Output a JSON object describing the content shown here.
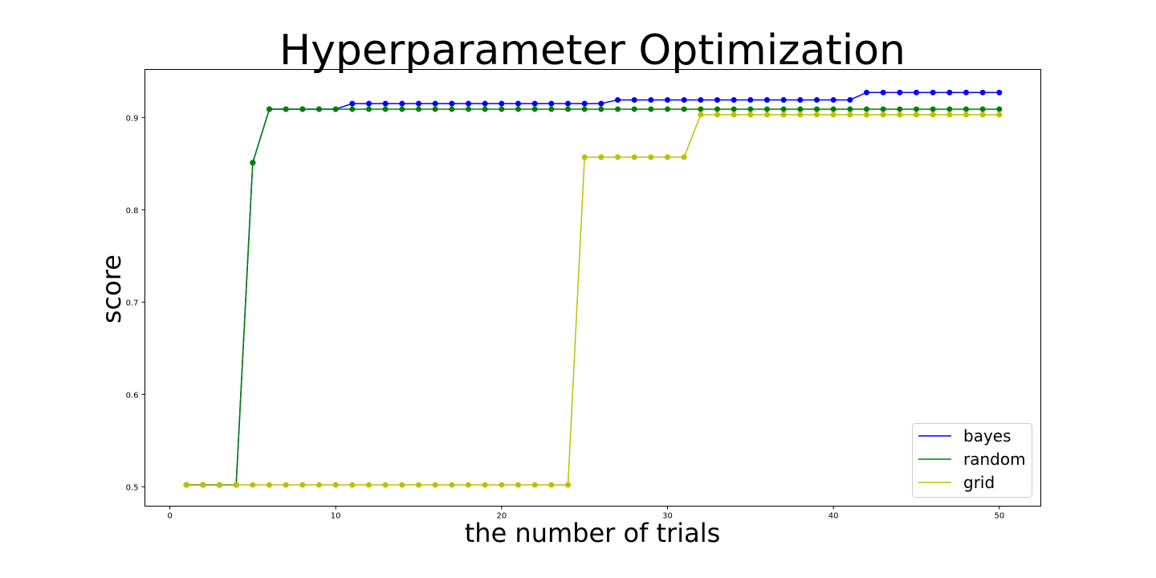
{
  "chart_data": {
    "type": "line",
    "title": "Hyperparameter Optimization",
    "xlabel": "the number of trials",
    "ylabel": "score",
    "xlim": [
      -1.5,
      52.5
    ],
    "ylim": [
      0.479,
      0.952
    ],
    "xticks": [
      0,
      10,
      20,
      30,
      40,
      50
    ],
    "yticks": [
      0.5,
      0.6,
      0.7,
      0.8,
      0.9
    ],
    "xtick_labels": [
      "0",
      "10",
      "20",
      "30",
      "40",
      "50"
    ],
    "ytick_labels": [
      "0.5",
      "0.6",
      "0.7",
      "0.8",
      "0.9"
    ],
    "grid": false,
    "legend_position": "lower-right",
    "x": [
      1,
      2,
      3,
      4,
      5,
      6,
      7,
      8,
      9,
      10,
      11,
      12,
      13,
      14,
      15,
      16,
      17,
      18,
      19,
      20,
      21,
      22,
      23,
      24,
      25,
      26,
      27,
      28,
      29,
      30,
      31,
      32,
      33,
      34,
      35,
      36,
      37,
      38,
      39,
      40,
      41,
      42,
      43,
      44,
      45,
      46,
      47,
      48,
      49,
      50
    ],
    "series": [
      {
        "name": "bayes",
        "color": "#0000ff",
        "values": [
          0.502,
          0.502,
          0.502,
          0.502,
          0.851,
          0.909,
          0.909,
          0.909,
          0.909,
          0.909,
          0.915,
          0.915,
          0.915,
          0.915,
          0.915,
          0.915,
          0.915,
          0.915,
          0.915,
          0.915,
          0.915,
          0.915,
          0.915,
          0.915,
          0.915,
          0.915,
          0.919,
          0.919,
          0.919,
          0.919,
          0.919,
          0.919,
          0.919,
          0.919,
          0.919,
          0.919,
          0.919,
          0.919,
          0.919,
          0.919,
          0.919,
          0.927,
          0.927,
          0.927,
          0.927,
          0.927,
          0.927,
          0.927,
          0.927,
          0.927
        ]
      },
      {
        "name": "random",
        "color": "#008000",
        "values": [
          0.502,
          0.502,
          0.502,
          0.502,
          0.851,
          0.909,
          0.909,
          0.909,
          0.909,
          0.909,
          0.909,
          0.909,
          0.909,
          0.909,
          0.909,
          0.909,
          0.909,
          0.909,
          0.909,
          0.909,
          0.909,
          0.909,
          0.909,
          0.909,
          0.909,
          0.909,
          0.909,
          0.909,
          0.909,
          0.909,
          0.909,
          0.909,
          0.909,
          0.909,
          0.909,
          0.909,
          0.909,
          0.909,
          0.909,
          0.909,
          0.909,
          0.909,
          0.909,
          0.909,
          0.909,
          0.909,
          0.909,
          0.909,
          0.909,
          0.909
        ]
      },
      {
        "name": "grid",
        "color": "#bfbf00",
        "values": [
          0.502,
          0.502,
          0.502,
          0.502,
          0.502,
          0.502,
          0.502,
          0.502,
          0.502,
          0.502,
          0.502,
          0.502,
          0.502,
          0.502,
          0.502,
          0.502,
          0.502,
          0.502,
          0.502,
          0.502,
          0.502,
          0.502,
          0.502,
          0.502,
          0.857,
          0.857,
          0.857,
          0.857,
          0.857,
          0.857,
          0.857,
          0.903,
          0.903,
          0.903,
          0.903,
          0.903,
          0.903,
          0.903,
          0.903,
          0.903,
          0.903,
          0.903,
          0.903,
          0.903,
          0.903,
          0.903,
          0.903,
          0.903,
          0.903,
          0.903
        ]
      }
    ]
  }
}
